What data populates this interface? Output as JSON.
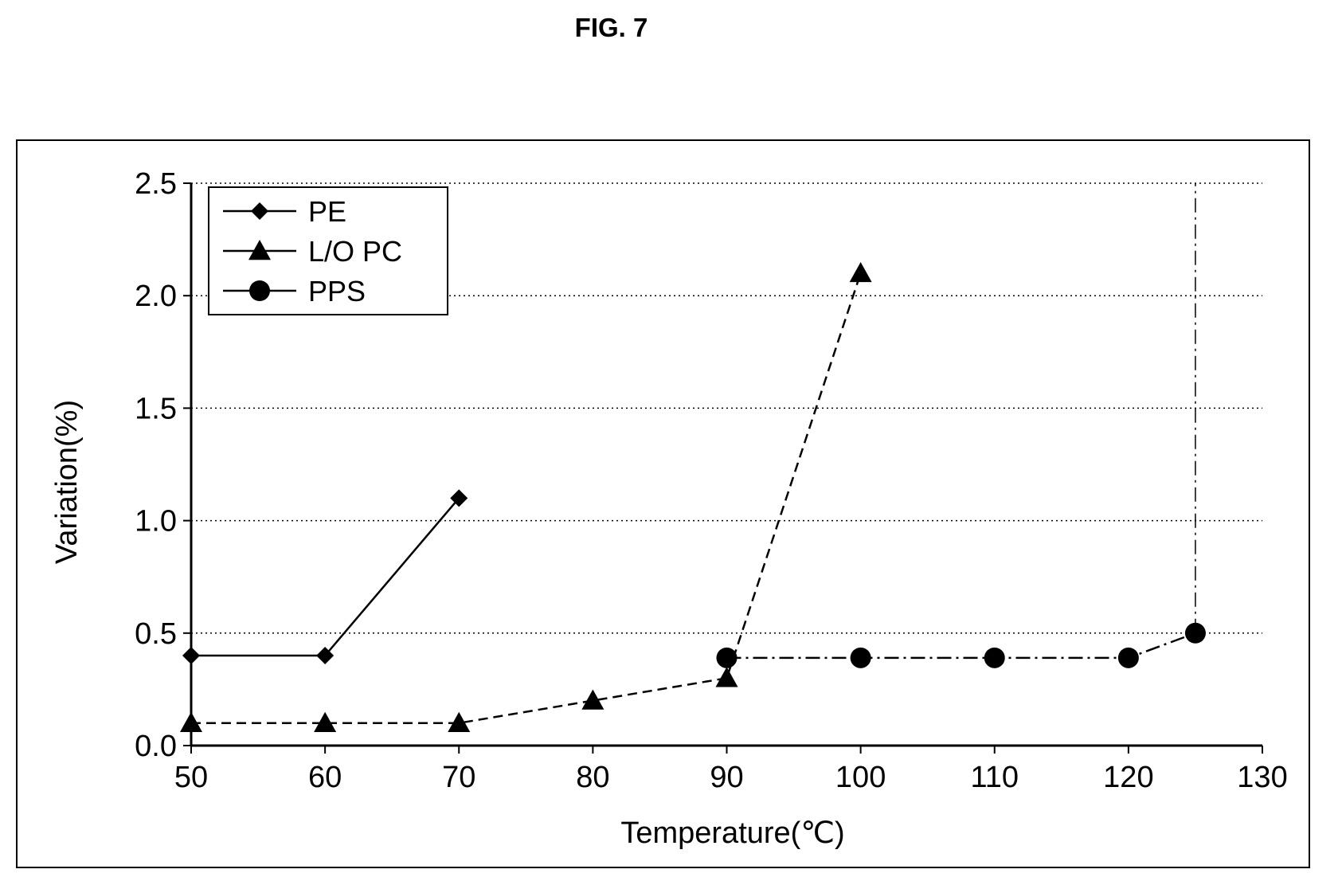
{
  "figure": {
    "title": "FIG. 7"
  },
  "chart_data": {
    "type": "line",
    "title": "",
    "xlabel": "Temperature(℃)",
    "ylabel": "Variation(%)",
    "xlim": [
      50,
      130
    ],
    "ylim": [
      0,
      2.5
    ],
    "x_ticks": [
      "50",
      "60",
      "70",
      "80",
      "90",
      "100",
      "110",
      "120",
      "130"
    ],
    "y_ticks": [
      "0.0",
      "0.5",
      "1.0",
      "1.5",
      "2.0",
      "2.5"
    ],
    "grid": "horizontal dotted",
    "legend_position": "top-left",
    "series": [
      {
        "name": "PE",
        "marker": "diamond",
        "line_style": "solid",
        "color": "#000000",
        "points": [
          [
            50,
            0.4
          ],
          [
            60,
            0.4
          ],
          [
            70,
            1.1
          ]
        ]
      },
      {
        "name": "L/O PC",
        "marker": "triangle",
        "line_style": "dashed",
        "color": "#000000",
        "points": [
          [
            50,
            0.1
          ],
          [
            60,
            0.1
          ],
          [
            70,
            0.1
          ],
          [
            80,
            0.2
          ],
          [
            90,
            0.3
          ],
          [
            100,
            2.1
          ]
        ]
      },
      {
        "name": "PPS",
        "marker": "circle",
        "line_style": "dash-dot",
        "color": "#000000",
        "points": [
          [
            90,
            0.39
          ],
          [
            100,
            0.39
          ],
          [
            110,
            0.39
          ],
          [
            120,
            0.39
          ],
          [
            125,
            0.5
          ]
        ]
      }
    ]
  }
}
